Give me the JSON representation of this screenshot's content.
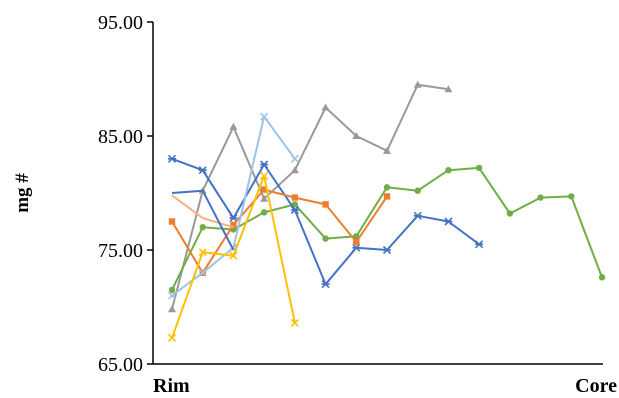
{
  "chart_data": {
    "type": "line",
    "title": "",
    "xlabel": "",
    "ylabel": "mg #",
    "ylim": [
      65,
      95
    ],
    "yticks": [
      65,
      75,
      85,
      95
    ],
    "ytick_labels": [
      "65.00",
      "75.00",
      "85.00",
      "95.00"
    ],
    "x_range": [
      0,
      15
    ],
    "x_endpoints": {
      "start_label": "Rim",
      "end_label": "Core"
    },
    "grid": false,
    "legend": "none",
    "series": [
      {
        "color": "#999999",
        "marker": "triangle",
        "x": [
          0,
          1,
          2,
          3,
          4,
          5,
          6,
          7,
          8,
          9
        ],
        "y": [
          69.8,
          80.2,
          85.8,
          79.5,
          82.0,
          87.5,
          85.0,
          83.7,
          89.5,
          89.1
        ]
      },
      {
        "color": "#70AD47",
        "marker": "circle",
        "x": [
          0,
          1,
          2,
          3,
          4,
          5,
          6,
          7,
          8,
          9,
          10,
          11,
          12,
          13,
          14
        ],
        "y": [
          71.5,
          77.0,
          76.8,
          78.3,
          79.0,
          76.0,
          76.2,
          80.5,
          80.2,
          82.0,
          82.2,
          78.2,
          79.6,
          79.7,
          72.6
        ]
      },
      {
        "color": "#4472C4",
        "marker": "star",
        "x": [
          0,
          1,
          2,
          3,
          4,
          5,
          6,
          7,
          8,
          9,
          10
        ],
        "y": [
          83.0,
          82.0,
          77.8,
          82.5,
          78.5,
          72.0,
          75.2,
          75.0,
          78.0,
          77.5,
          75.5
        ]
      },
      {
        "color": "#ED7D31",
        "marker": "square",
        "x": [
          0,
          1,
          2,
          3,
          4,
          5,
          6,
          7
        ],
        "y": [
          77.5,
          73.0,
          77.2,
          80.3,
          79.6,
          79.0,
          75.7,
          79.7
        ]
      },
      {
        "color": "#F4B183",
        "marker": "none",
        "x": [
          0,
          1,
          2
        ],
        "y": [
          79.8,
          77.8,
          77.0
        ]
      },
      {
        "color": "#9DC3E6",
        "marker": "x",
        "x": [
          0,
          1,
          2,
          3,
          4
        ],
        "y": [
          71.0,
          73.0,
          75.2,
          86.7,
          83.0
        ]
      },
      {
        "color": "#FFC000",
        "marker": "x",
        "x": [
          0,
          1,
          2,
          3,
          4
        ],
        "y": [
          67.3,
          74.8,
          74.5,
          81.5,
          68.6
        ]
      },
      {
        "color": "#4472C4",
        "marker": "none",
        "x": [
          0,
          1,
          2
        ],
        "y": [
          80.0,
          80.2,
          75.0
        ]
      }
    ]
  }
}
